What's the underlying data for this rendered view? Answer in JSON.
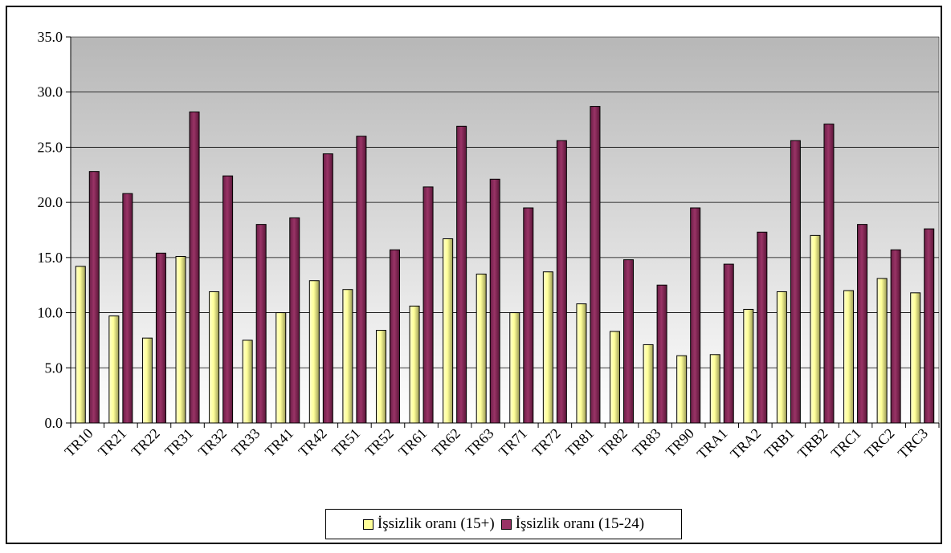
{
  "chart_data": {
    "type": "bar",
    "categories": [
      "TR10",
      "TR21",
      "TR22",
      "TR31",
      "TR32",
      "TR33",
      "TR41",
      "TR42",
      "TR51",
      "TR52",
      "TR61",
      "TR62",
      "TR63",
      "TR71",
      "TR72",
      "TR81",
      "TR82",
      "TR83",
      "TR90",
      "TRA1",
      "TRA2",
      "TRB1",
      "TRB2",
      "TRC1",
      "TRC2",
      "TRC3"
    ],
    "series": [
      {
        "name": "İşsizlik oranı (15+)",
        "color": "#FFFF99",
        "values": [
          14.2,
          9.7,
          7.7,
          15.1,
          11.9,
          7.5,
          10.0,
          12.9,
          12.1,
          8.4,
          10.6,
          16.7,
          13.5,
          10.0,
          13.7,
          10.8,
          8.3,
          7.1,
          6.1,
          6.2,
          10.3,
          11.9,
          17.0,
          12.0,
          13.1,
          11.8
        ]
      },
      {
        "name": "İşsizlik oranı (15-24)",
        "color": "#993366",
        "values": [
          22.8,
          20.8,
          15.4,
          28.2,
          22.4,
          18.0,
          18.6,
          24.4,
          26.0,
          15.7,
          21.4,
          26.9,
          22.1,
          19.5,
          25.6,
          28.7,
          14.8,
          12.5,
          19.5,
          14.4,
          17.3,
          25.6,
          27.1,
          18.0,
          15.7,
          17.6
        ]
      }
    ],
    "yticks": [
      "0.0",
      "5.0",
      "10.0",
      "15.0",
      "20.0",
      "25.0",
      "30.0",
      "35.0"
    ],
    "ylim": [
      0,
      35
    ],
    "grid": true,
    "legend": "bottom",
    "title": "",
    "xlabel": "",
    "ylabel": ""
  }
}
